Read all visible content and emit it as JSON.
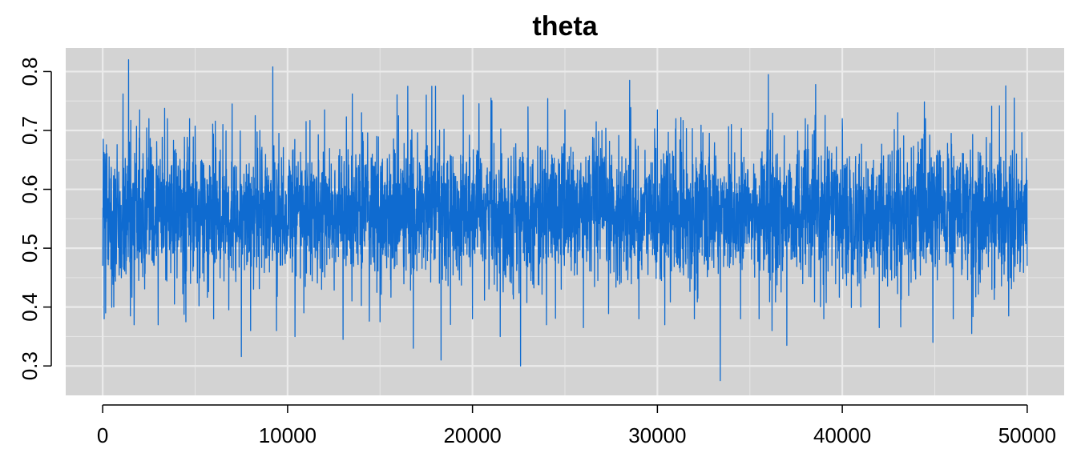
{
  "chart_data": {
    "type": "line",
    "title": "theta",
    "xlabel": "",
    "ylabel": "",
    "xlim": [
      -2000,
      52000
    ],
    "ylim": [
      0.25,
      0.84
    ],
    "x_ticks": [
      0,
      10000,
      20000,
      30000,
      40000,
      50000
    ],
    "y_ticks": [
      0.3,
      0.4,
      0.5,
      0.6,
      0.7,
      0.8
    ],
    "x_tick_labels": [
      "0",
      "10000",
      "20000",
      "30000",
      "40000",
      "50000"
    ],
    "y_tick_labels": [
      "0.3",
      "0.4",
      "0.5",
      "0.6",
      "0.7",
      "0.8"
    ],
    "grid": true,
    "background_color": "#d3d3d3",
    "grid_color": "#ebebeb",
    "series": [
      {
        "color": "#0f6bd0",
        "iterations": [
          0,
          50000
        ],
        "mean_approx": 0.56,
        "sd_approx": 0.06,
        "values": [
          [
            0,
            0.47
          ],
          [
            30,
            0.685
          ],
          [
            80,
            0.38
          ],
          [
            160,
            0.39
          ],
          [
            350,
            0.655
          ],
          [
            600,
            0.4
          ],
          [
            1100,
            0.762
          ],
          [
            1400,
            0.82
          ],
          [
            1500,
            0.385
          ],
          [
            1700,
            0.37
          ],
          [
            2000,
            0.735
          ],
          [
            2500,
            0.72
          ],
          [
            3000,
            0.37
          ],
          [
            3500,
            0.72
          ],
          [
            4500,
            0.375
          ],
          [
            4700,
            0.72
          ],
          [
            6000,
            0.38
          ],
          [
            6500,
            0.71
          ],
          [
            7000,
            0.745
          ],
          [
            7500,
            0.316
          ],
          [
            8000,
            0.36
          ],
          [
            8500,
            0.7
          ],
          [
            9200,
            0.808
          ],
          [
            9400,
            0.36
          ],
          [
            10400,
            0.35
          ],
          [
            11000,
            0.715
          ],
          [
            12000,
            0.735
          ],
          [
            13000,
            0.345
          ],
          [
            13500,
            0.762
          ],
          [
            14000,
            0.73
          ],
          [
            15000,
            0.375
          ],
          [
            16000,
            0.725
          ],
          [
            16500,
            0.775
          ],
          [
            16800,
            0.33
          ],
          [
            17500,
            0.76
          ],
          [
            17800,
            0.775
          ],
          [
            18000,
            0.775
          ],
          [
            18300,
            0.31
          ],
          [
            19500,
            0.76
          ],
          [
            20000,
            0.38
          ],
          [
            21000,
            0.755
          ],
          [
            21500,
            0.35
          ],
          [
            22600,
            0.3
          ],
          [
            23000,
            0.74
          ],
          [
            24000,
            0.37
          ],
          [
            25000,
            0.735
          ],
          [
            26000,
            0.365
          ],
          [
            27000,
            0.7
          ],
          [
            28500,
            0.785
          ],
          [
            29000,
            0.38
          ],
          [
            30000,
            0.735
          ],
          [
            30400,
            0.37
          ],
          [
            31000,
            0.72
          ],
          [
            32000,
            0.38
          ],
          [
            33400,
            0.275
          ],
          [
            34000,
            0.71
          ],
          [
            34500,
            0.38
          ],
          [
            35500,
            0.38
          ],
          [
            36000,
            0.795
          ],
          [
            36200,
            0.36
          ],
          [
            37000,
            0.335
          ],
          [
            38000,
            0.72
          ],
          [
            39000,
            0.38
          ],
          [
            40000,
            0.72
          ],
          [
            41000,
            0.4
          ],
          [
            42000,
            0.365
          ],
          [
            43000,
            0.73
          ],
          [
            44500,
            0.72
          ],
          [
            44900,
            0.34
          ],
          [
            46000,
            0.38
          ],
          [
            47000,
            0.355
          ],
          [
            48500,
            0.742
          ],
          [
            49000,
            0.385
          ],
          [
            49300,
            0.755
          ],
          [
            50000,
            0.47
          ]
        ]
      }
    ]
  }
}
